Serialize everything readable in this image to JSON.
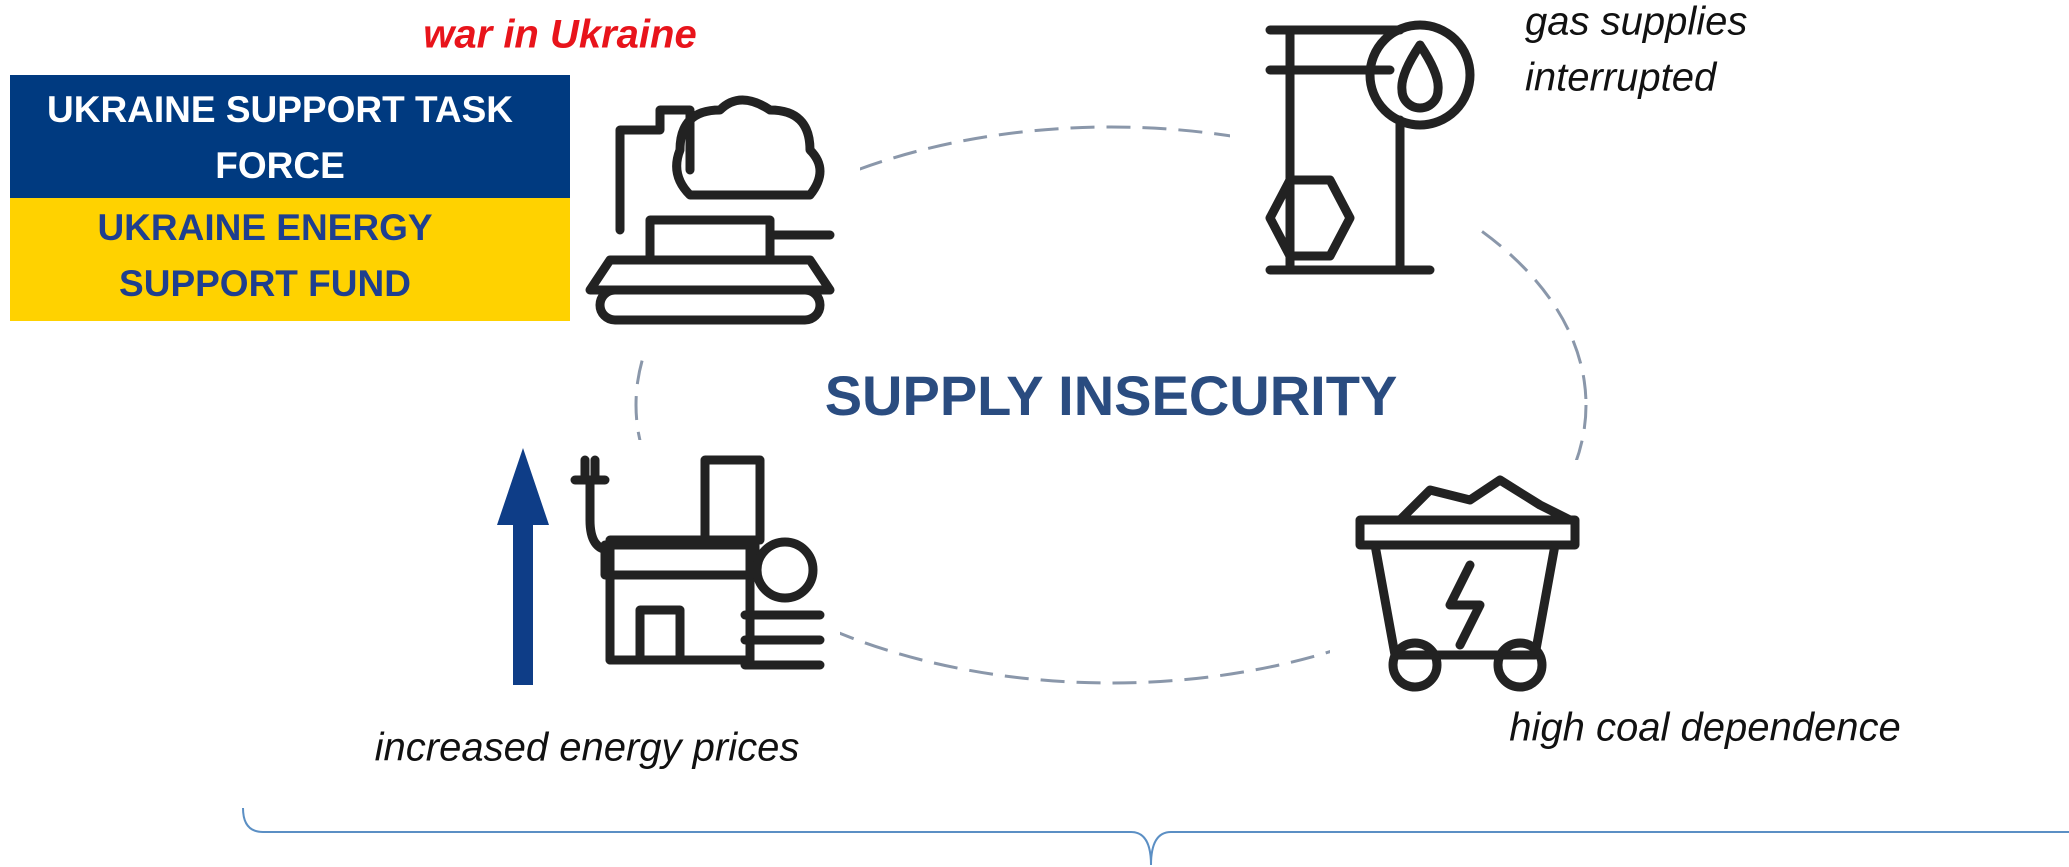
{
  "header": {
    "subtitle": "war in Ukraine",
    "task_force": [
      "UKRAINE SUPPORT TASK",
      "FORCE"
    ],
    "fund": [
      "UKRAINE ENERGY",
      "SUPPORT FUND"
    ]
  },
  "center": {
    "title": "SUPPLY INSECURITY"
  },
  "nodes": [
    {
      "label": [
        "gas supplies",
        "interrupted"
      ]
    },
    {
      "label": [
        "high coal dependence"
      ]
    },
    {
      "label": [
        "increased energy prices"
      ]
    }
  ]
}
